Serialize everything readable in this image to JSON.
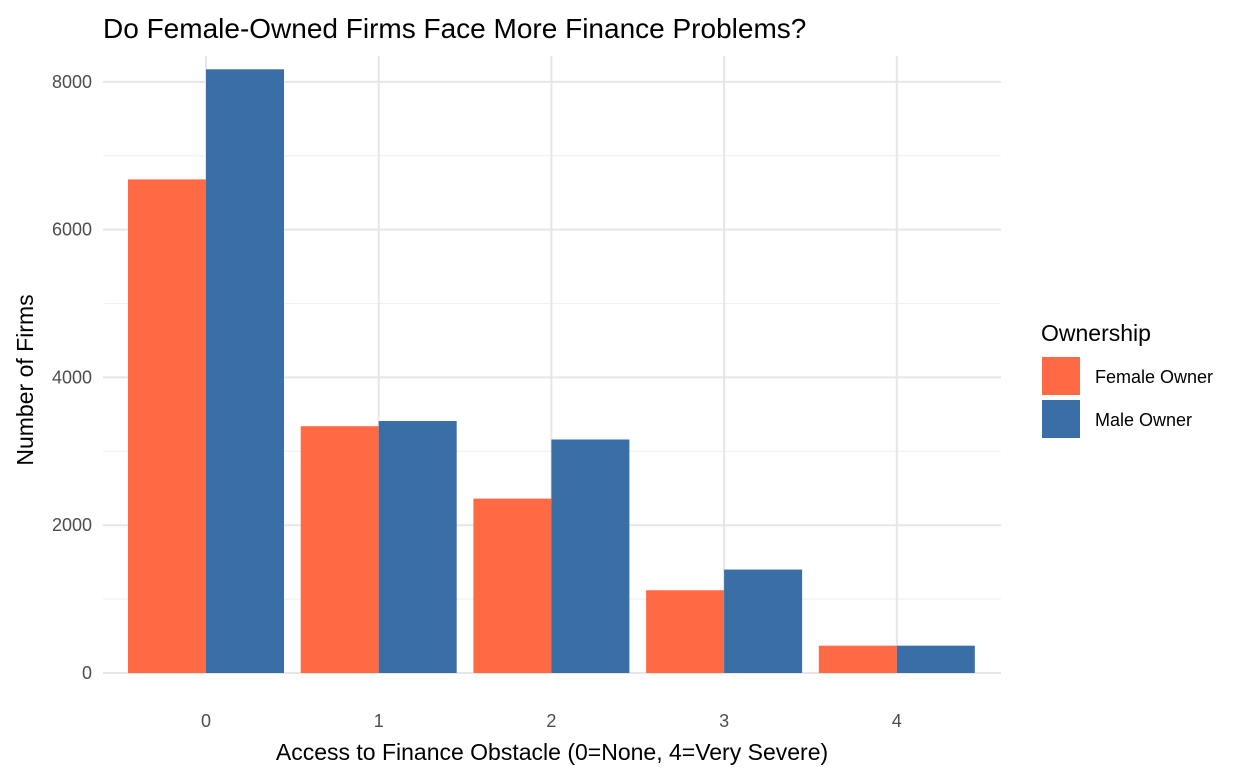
{
  "chart_data": {
    "type": "bar",
    "title": "Do Female-Owned Firms Face More Finance Problems?",
    "xlabel": "Access to Finance Obstacle (0=None, 4=Very Severe)",
    "ylabel": "Number of Firms",
    "categories": [
      "0",
      "1",
      "2",
      "3",
      "4"
    ],
    "series": [
      {
        "name": "Female Owner",
        "color": "#ff6a45",
        "values": [
          6680,
          3340,
          2360,
          1120,
          370
        ]
      },
      {
        "name": "Male Owner",
        "color": "#3a6ea6",
        "values": [
          8170,
          3410,
          3160,
          1400,
          370
        ]
      }
    ],
    "ylim": [
      0,
      8350
    ],
    "yticks": [
      0,
      2000,
      4000,
      6000,
      8000
    ],
    "y_minor_ticks": [
      1000,
      3000,
      5000,
      7000
    ],
    "grid": true,
    "legend": {
      "title": "Ownership",
      "position": "right"
    }
  }
}
